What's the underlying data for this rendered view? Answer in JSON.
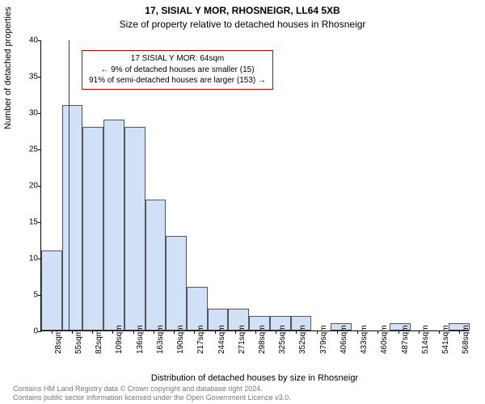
{
  "title_main": "17, SISIAL Y MOR, RHOSNEIGR, LL64 5XB",
  "title_sub": "Size of property relative to detached houses in Rhosneigr",
  "chart": {
    "type": "histogram",
    "ylabel": "Number of detached properties",
    "xlabel": "Distribution of detached houses by size in Rhosneigr",
    "ylim": [
      0,
      40
    ],
    "ytick_step": 5,
    "yticks": [
      0,
      5,
      10,
      15,
      20,
      25,
      30,
      35,
      40
    ],
    "bar_fill": "#cfe0f7",
    "bar_border": "#555555",
    "background": "#ffffff",
    "marker_line_color": "#cc0000",
    "marker_x_index": 1.35,
    "xticks": [
      "28sqm",
      "55sqm",
      "82sqm",
      "109sqm",
      "136sqm",
      "163sqm",
      "190sqm",
      "217sqm",
      "244sqm",
      "271sqm",
      "298sqm",
      "325sqm",
      "352sqm",
      "379sqm",
      "406sqm",
      "433sqm",
      "460sqm",
      "487sqm",
      "514sqm",
      "541sqm",
      "568sqm"
    ],
    "values": [
      11,
      31,
      28,
      29,
      28,
      18,
      13,
      6,
      3,
      3,
      2,
      2,
      2,
      0,
      1,
      0,
      0,
      1,
      0,
      0,
      1
    ],
    "annotation": {
      "lines": [
        "17 SISIAL Y MOR: 64sqm",
        "← 9% of detached houses are smaller (15)",
        "91% of semi-detached houses are larger (153) →"
      ],
      "border_color": "#cc0000"
    }
  },
  "footer": {
    "line1": "Contains HM Land Registry data © Crown copyright and database right 2024.",
    "line2": "Contains public sector information licensed under the Open Government Licence v3.0."
  }
}
